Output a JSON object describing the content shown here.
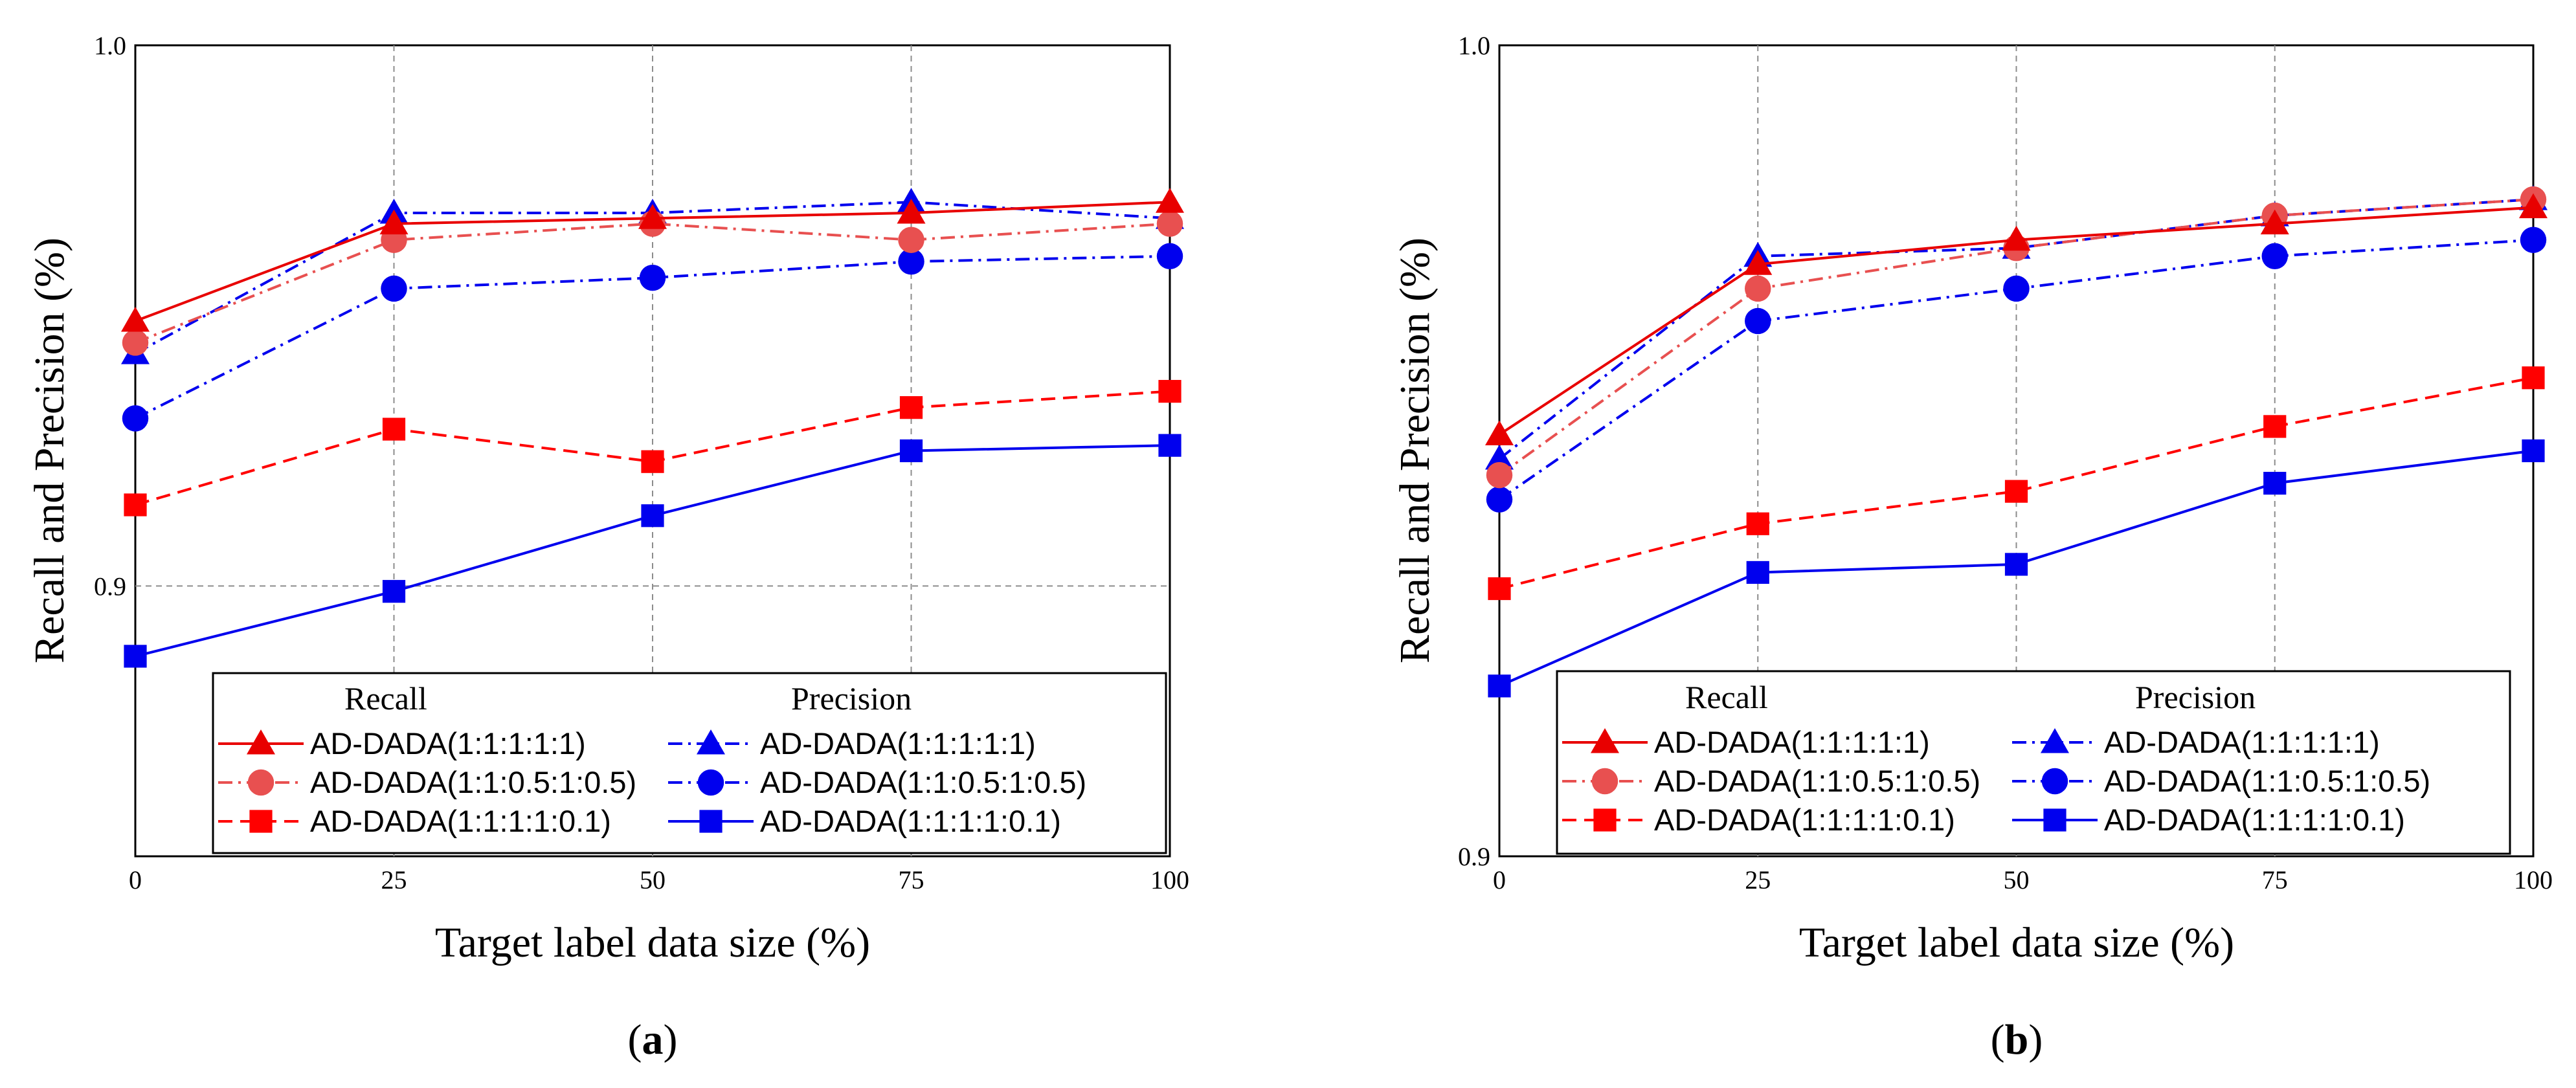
{
  "figure": {
    "series_styles": [
      {
        "color": "#e80000",
        "dash": "solid",
        "marker": "triangle"
      },
      {
        "color": "#e85050",
        "dash": "dashdot",
        "marker": "circle"
      },
      {
        "color": "#ff0000",
        "dash": "dashed",
        "marker": "square"
      },
      {
        "color": "#0000ee",
        "dash": "dashdot",
        "marker": "triangle"
      },
      {
        "color": "#0000ee",
        "dash": "dashdot",
        "marker": "circle"
      },
      {
        "color": "#0000ee",
        "dash": "solid",
        "marker": "square"
      }
    ]
  },
  "chart_data": [
    {
      "type": "line",
      "panel_label": "a",
      "xlabel": "Target label data size (%)",
      "ylabel": "Recall and Precision (%)",
      "x": [
        0,
        25,
        50,
        75,
        100
      ],
      "xticks": [
        "0",
        "25",
        "50",
        "75",
        "100"
      ],
      "xlim": [
        0,
        100
      ],
      "ylim": [
        0.85,
        1.0
      ],
      "yticks": [
        {
          "value": 0.9,
          "label": "0.9"
        },
        {
          "value": 1.0,
          "label": "1.0"
        }
      ],
      "grid": true,
      "legend_location": "bottom-right",
      "legend_headers": [
        "Recall",
        "Precision"
      ],
      "series": [
        {
          "name": "AD-DADA(1:1:1:1:1)",
          "group": "Recall",
          "values": [
            0.949,
            0.967,
            0.968,
            0.969,
            0.971
          ]
        },
        {
          "name": "AD-DADA(1:1:0.5:1:0.5)",
          "group": "Recall",
          "values": [
            0.945,
            0.964,
            0.967,
            0.964,
            0.967
          ]
        },
        {
          "name": "AD-DADA(1:1:1:1:0.1)",
          "group": "Recall",
          "values": [
            0.915,
            0.929,
            0.923,
            0.933,
            0.936
          ]
        },
        {
          "name": "AD-DADA(1:1:1:1:1)",
          "group": "Precision",
          "values": [
            0.943,
            0.969,
            0.969,
            0.971,
            0.968
          ]
        },
        {
          "name": "AD-DADA(1:1:0.5:1:0.5)",
          "group": "Precision",
          "values": [
            0.931,
            0.955,
            0.957,
            0.96,
            0.961
          ]
        },
        {
          "name": "AD-DADA(1:1:1:1:0.1)",
          "group": "Precision",
          "values": [
            0.887,
            0.899,
            0.913,
            0.925,
            0.926
          ]
        }
      ]
    },
    {
      "type": "line",
      "panel_label": "b",
      "xlabel": "Target label data size (%)",
      "ylabel": "Recall and Precision (%)",
      "x": [
        0,
        25,
        50,
        75,
        100
      ],
      "xticks": [
        "0",
        "25",
        "50",
        "75",
        "100"
      ],
      "xlim": [
        0,
        100
      ],
      "ylim": [
        0.9,
        1.0
      ],
      "yticks": [
        {
          "value": 0.9,
          "label": "0.9"
        },
        {
          "value": 1.0,
          "label": "1.0"
        }
      ],
      "grid": true,
      "legend_location": "bottom-right",
      "legend_headers": [
        "Recall",
        "Precision"
      ],
      "series": [
        {
          "name": "AD-DADA(1:1:1:1:1)",
          "group": "Recall",
          "values": [
            0.952,
            0.973,
            0.976,
            0.978,
            0.98
          ]
        },
        {
          "name": "AD-DADA(1:1:0.5:1:0.5)",
          "group": "Recall",
          "values": [
            0.947,
            0.97,
            0.975,
            0.979,
            0.981
          ]
        },
        {
          "name": "AD-DADA(1:1:1:1:0.1)",
          "group": "Recall",
          "values": [
            0.933,
            0.941,
            0.945,
            0.953,
            0.959
          ]
        },
        {
          "name": "AD-DADA(1:1:1:1:1)",
          "group": "Precision",
          "values": [
            0.949,
            0.974,
            0.975,
            0.979,
            0.981
          ]
        },
        {
          "name": "AD-DADA(1:1:0.5:1:0.5)",
          "group": "Precision",
          "values": [
            0.944,
            0.966,
            0.97,
            0.974,
            0.976
          ]
        },
        {
          "name": "AD-DADA(1:1:1:1:0.1)",
          "group": "Precision",
          "values": [
            0.921,
            0.935,
            0.936,
            0.946,
            0.95
          ]
        }
      ]
    }
  ]
}
